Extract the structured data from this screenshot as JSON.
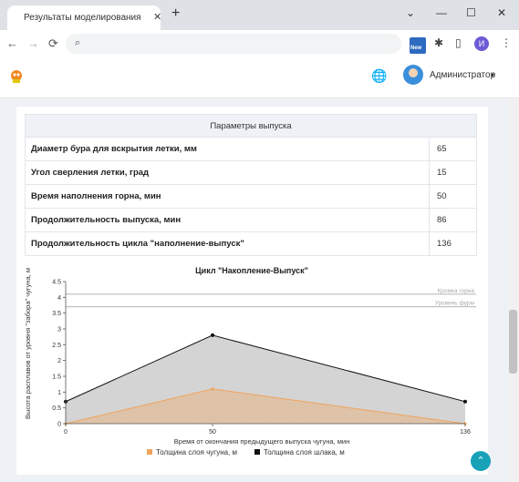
{
  "browser": {
    "tab_title": "Результаты моделирования - Е",
    "tab_close": "✕",
    "new_tab": "+",
    "win_collapse": "⌄",
    "win_minimize": "—",
    "win_maximize": "☐",
    "win_close": "✕",
    "back": "←",
    "forward": "→",
    "reload": "⟳",
    "search_icon": "⌕",
    "ext_badge": "New",
    "puzzle": "✱",
    "sidepanel": "▯",
    "profile_initial": "И",
    "menu": "⋮"
  },
  "app": {
    "globe_icon": "🌐",
    "user_name": "Администратор",
    "user_caret": "▾"
  },
  "params": {
    "header": "Параметры выпуска",
    "rows": [
      {
        "label": "Диаметр бура для вскрытия летки, мм",
        "value": "65"
      },
      {
        "label": "Угол сверления летки, град",
        "value": "15"
      },
      {
        "label": "Время наполнения горна, мин",
        "value": "50"
      },
      {
        "label": "Продолжительность выпуска, мин",
        "value": "86"
      },
      {
        "label": "Продолжительность цикла \"наполнение-выпуск\"",
        "value": "136"
      }
    ]
  },
  "fab_icon": "⌃",
  "chart_data": {
    "type": "area",
    "title": "Цикл \"Накопление-Выпуск\"",
    "xlabel": "Время от окончания предыдущего выпуска чугуна, мин",
    "ylabel": "Высота расплавов от уровня \"забора\" чугуна, м",
    "x_ticks": [
      "0",
      "50",
      "136"
    ],
    "y_ticks": [
      "0",
      "0.5",
      "1",
      "1.5",
      "2",
      "2.5",
      "3",
      "3.5",
      "4",
      "4.5"
    ],
    "xlim": [
      0,
      136
    ],
    "ylim": [
      0,
      4.5
    ],
    "ref_lines": [
      {
        "label": "Кромка горна",
        "y": 4.1
      },
      {
        "label": "Уровень фурм",
        "y": 3.7
      }
    ],
    "series": [
      {
        "name": "Толщина слоя чугуна, м",
        "color": "#f0a35a",
        "x": [
          0,
          50,
          136
        ],
        "y": [
          0,
          1.1,
          0
        ]
      },
      {
        "name": "Толщина слоя шлака, м",
        "color": "#111111",
        "x": [
          0,
          50,
          136
        ],
        "y": [
          0.7,
          2.8,
          0.7
        ]
      }
    ]
  }
}
